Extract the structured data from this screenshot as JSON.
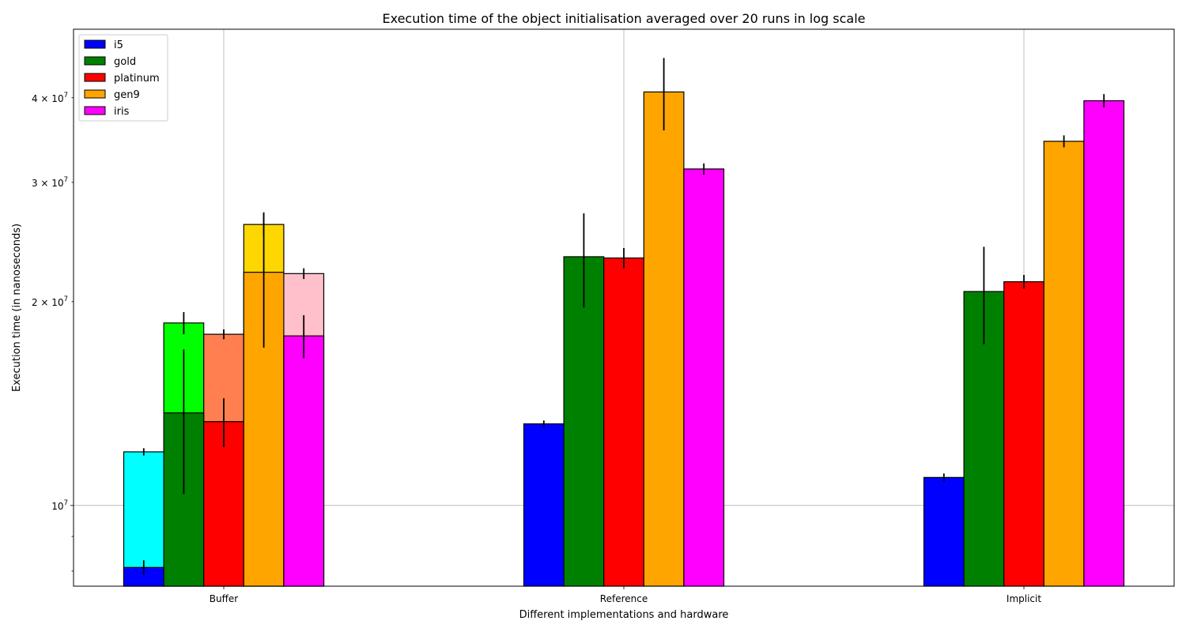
{
  "chart_data": {
    "type": "bar",
    "title": "Execution time of the object initialisation averaged over 20 runs in log scale",
    "xlabel": "Different implementations and hardware",
    "ylabel": "Execution time (in nanoseconds)",
    "yscale": "log",
    "ylim": [
      7600000,
      50500000
    ],
    "grid": true,
    "legend_position": "top-left",
    "categories": [
      "Buffer",
      "Reference",
      "Implicit"
    ],
    "ytick_labels": [
      {
        "value": 10000000,
        "label": "10⁷",
        "base": "10",
        "exp": "7",
        "coef": ""
      },
      {
        "value": 20000000,
        "label": "2 × 10⁷",
        "base": "10",
        "exp": "7",
        "coef": "2"
      },
      {
        "value": 30000000,
        "label": "3 × 10⁷",
        "base": "10",
        "exp": "7",
        "coef": "3"
      },
      {
        "value": 40000000,
        "label": "4 × 10⁷",
        "base": "10",
        "exp": "7",
        "coef": "4"
      }
    ],
    "series": [
      {
        "name": "i5",
        "color": "#0000ff",
        "values": [
          8100000,
          13200000,
          11000000
        ],
        "errors": [
          200000,
          150000,
          150000
        ]
      },
      {
        "name": "gold",
        "color": "#008000",
        "values": [
          13700000,
          23300000,
          20700000
        ],
        "errors": [
          3300000,
          3700000,
          3400000
        ]
      },
      {
        "name": "platinum",
        "color": "#ff0000",
        "values": [
          13300000,
          23200000,
          21400000
        ],
        "errors": [
          1100000,
          800000,
          500000
        ]
      },
      {
        "name": "gen9",
        "color": "#ffa500",
        "values": [
          22100000,
          40800000,
          34500000
        ],
        "errors": [
          5000000,
          5000000,
          700000
        ]
      },
      {
        "name": "iris",
        "color": "#ff00ff",
        "values": [
          17800000,
          31400000,
          39600000
        ],
        "errors": [
          1300000,
          600000,
          900000
        ]
      }
    ],
    "overlay_bars": {
      "category": "Buffer",
      "values": [
        12000000,
        18600000,
        17900000,
        26000000,
        22000000
      ],
      "errors": [
        150000,
        700000,
        300000,
        1000000,
        400000
      ],
      "colors": [
        "#00ffff",
        "#00ff00",
        "#ff7f50",
        "#ffd700",
        "#ffc0cb"
      ]
    }
  }
}
